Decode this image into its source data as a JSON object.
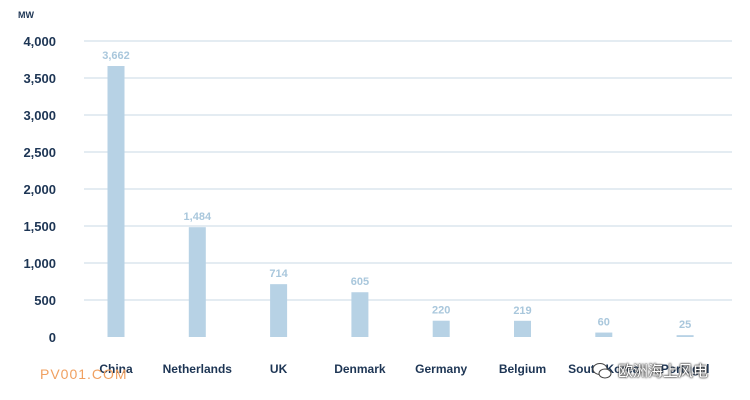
{
  "chart_data": {
    "type": "bar",
    "unit": "MW",
    "categories": [
      "China",
      "Netherlands",
      "UK",
      "Denmark",
      "Germany",
      "Belgium",
      "South Korea",
      "Portugal"
    ],
    "values": [
      3662,
      1484,
      714,
      605,
      220,
      219,
      60,
      25
    ],
    "value_labels": [
      "3,662",
      "1,484",
      "714",
      "605",
      "220",
      "219",
      "60",
      "25"
    ],
    "ylim": [
      0,
      4000
    ],
    "yticks": [
      0,
      500,
      1000,
      1500,
      2000,
      2500,
      3000,
      3500,
      4000
    ],
    "ytick_labels": [
      "0",
      "500",
      "1,000",
      "1,500",
      "2,000",
      "2,500",
      "3,000",
      "3,500",
      "4,000"
    ],
    "grid": true,
    "bar_color": "#b7d2e5",
    "data_label_color": "#a9c7dc",
    "grid_color": "#c8d9e6",
    "text_color": "#1d3554"
  },
  "watermarks": {
    "left_text": "PV001.COM",
    "right_text": "欧洲海上风电",
    "right_icon": "wechat-icon"
  }
}
